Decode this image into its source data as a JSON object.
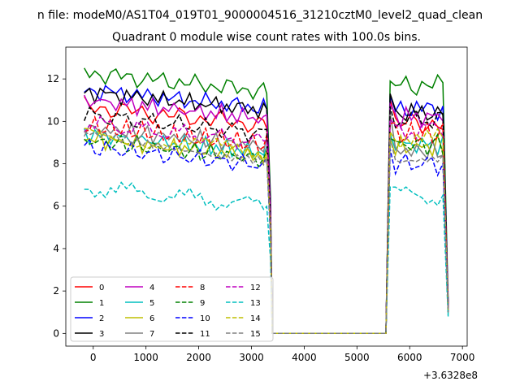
{
  "chart_data": {
    "type": "line",
    "suptitle": "n file: modeM0/AS1T04_019T01_9000004516_31210cztM0_level2_quad_clean",
    "title": "Quadrant 0 module wise count rates with 100.0s bins.",
    "xlabel": "",
    "ylabel": "",
    "x_offset_label": "+3.6328e8",
    "xlim": [
      -520,
      7090
    ],
    "ylim": [
      -0.6,
      13.5
    ],
    "xticks": [
      0,
      1000,
      2000,
      3000,
      4000,
      5000,
      6000,
      7000
    ],
    "yticks": [
      0,
      2,
      4,
      6,
      8,
      10,
      12
    ],
    "grid": false,
    "legend_position": "lower-left",
    "legend_columns": 4,
    "x_segments": {
      "seg1": [
        -170,
        -70,
        30,
        130,
        230,
        330,
        430,
        530,
        630,
        730,
        830,
        930,
        1030,
        1130,
        1230,
        1330,
        1430,
        1530,
        1630,
        1730,
        1830,
        1930,
        2030,
        2130,
        2230,
        2330,
        2430,
        2530,
        2630,
        2730,
        2830,
        2930,
        3030,
        3130,
        3230,
        3290
      ],
      "drop": [
        3360,
        3395
      ],
      "gap": [
        3395,
        5550
      ],
      "seg2": [
        5630,
        5730,
        5830,
        5930,
        6030,
        6130,
        6230,
        6330,
        6430,
        6530,
        6630
      ],
      "end_x": 6730
    },
    "series": [
      {
        "name": "0",
        "color": "#ff0000",
        "dash": "solid",
        "level1": 10.2,
        "level2": 9.9,
        "peak2": 11.0,
        "end_y": 1.2
      },
      {
        "name": "1",
        "color": "#008000",
        "dash": "solid",
        "level1": 11.8,
        "level2": 11.7,
        "peak2": 11.9,
        "end_y": 1.5
      },
      {
        "name": "2",
        "color": "#0000ff",
        "dash": "solid",
        "level1": 11.0,
        "level2": 10.6,
        "peak2": 11.2,
        "end_y": 1.4
      },
      {
        "name": "3",
        "color": "#000000",
        "dash": "solid",
        "level1": 10.9,
        "level2": 10.4,
        "peak2": 11.3,
        "end_y": 1.3
      },
      {
        "name": "4",
        "color": "#bf00bf",
        "dash": "solid",
        "level1": 10.5,
        "level2": 10.2,
        "peak2": 10.8,
        "end_y": 1.3
      },
      {
        "name": "5",
        "color": "#00bfbf",
        "dash": "solid",
        "level1": 8.9,
        "level2": 8.9,
        "peak2": 9.4,
        "end_y": 0.9
      },
      {
        "name": "6",
        "color": "#bfbf00",
        "dash": "solid",
        "level1": 8.7,
        "level2": 8.8,
        "peak2": 9.2,
        "end_y": 1.0
      },
      {
        "name": "7",
        "color": "#808080",
        "dash": "solid",
        "level1": 9.2,
        "level2": 8.6,
        "peak2": 10.4,
        "end_y": 1.1
      },
      {
        "name": "8",
        "color": "#ff0000",
        "dash": "dashed",
        "level1": 9.3,
        "level2": 9.4,
        "peak2": 9.9,
        "end_y": 1.1
      },
      {
        "name": "9",
        "color": "#008000",
        "dash": "dashed",
        "level1": 8.6,
        "level2": 8.9,
        "peak2": 9.2,
        "end_y": 1.0
      },
      {
        "name": "10",
        "color": "#0000ff",
        "dash": "dashed",
        "level1": 8.3,
        "level2": 8.0,
        "peak2": 8.7,
        "end_y": 1.0
      },
      {
        "name": "11",
        "color": "#000000",
        "dash": "dashed",
        "level1": 9.8,
        "level2": 10.1,
        "peak2": 10.7,
        "end_y": 1.2
      },
      {
        "name": "12",
        "color": "#bf00bf",
        "dash": "dashed",
        "level1": 9.4,
        "level2": 9.6,
        "peak2": 10.1,
        "end_y": 1.1
      },
      {
        "name": "13",
        "color": "#00bfbf",
        "dash": "dashed",
        "level1": 6.4,
        "level2": 6.5,
        "peak2": 6.9,
        "end_y": 0.8
      },
      {
        "name": "14",
        "color": "#bfbf00",
        "dash": "dashed",
        "level1": 8.9,
        "level2": 9.1,
        "peak2": 9.5,
        "end_y": 1.0
      },
      {
        "name": "15",
        "color": "#808080",
        "dash": "dashed",
        "level1": 8.8,
        "level2": 8.4,
        "peak2": 9.2,
        "end_y": 1.0
      }
    ]
  }
}
